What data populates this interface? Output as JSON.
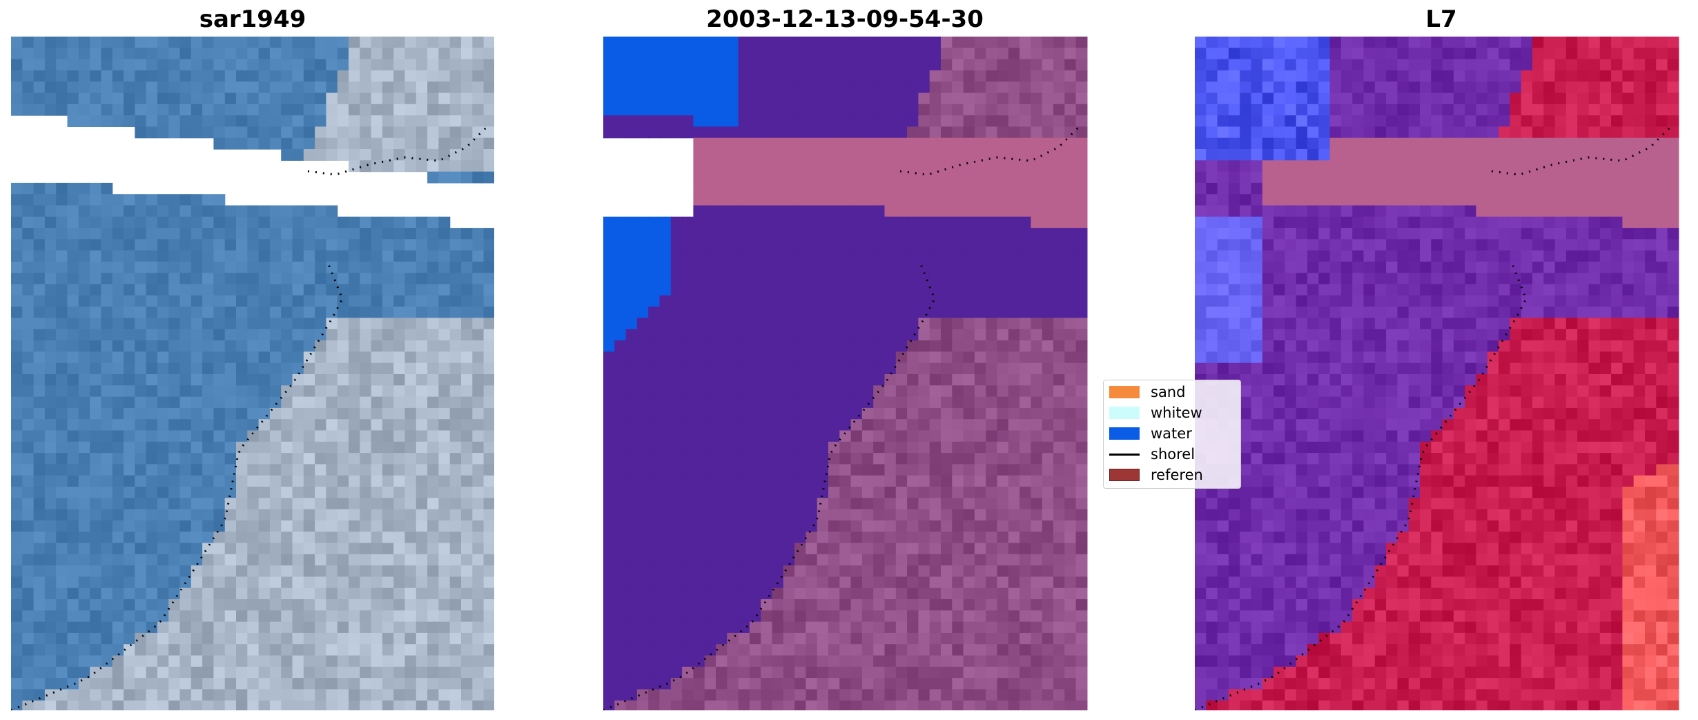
{
  "panels": [
    {
      "title": "sar1949",
      "style": "rgb"
    },
    {
      "title": "2003-12-13-09-54-30",
      "style": "classified"
    },
    {
      "title": "L7",
      "style": "rgb-class"
    }
  ],
  "legend": {
    "items": [
      {
        "label": "sand",
        "color": "#f58a3c",
        "kind": "patch"
      },
      {
        "label": "whitew",
        "color": "#ccfdfc",
        "kind": "patch"
      },
      {
        "label": "water",
        "color": "#0a5ce6",
        "kind": "patch"
      },
      {
        "label": "shorel",
        "color": "#000000",
        "kind": "line"
      },
      {
        "label": "referen",
        "color": "#9e3636",
        "kind": "patch"
      }
    ]
  },
  "colors": {
    "water_rgb": "#4a7fb4",
    "land_rgb": "#a7b5c6",
    "water_class": "#52239a",
    "land_class": "#8f4f86",
    "water_mask": "#0a5ce6",
    "cloud_mask": "#b8618f",
    "water_l7": "#6f2caa",
    "land_l7": "#c81d4e"
  }
}
